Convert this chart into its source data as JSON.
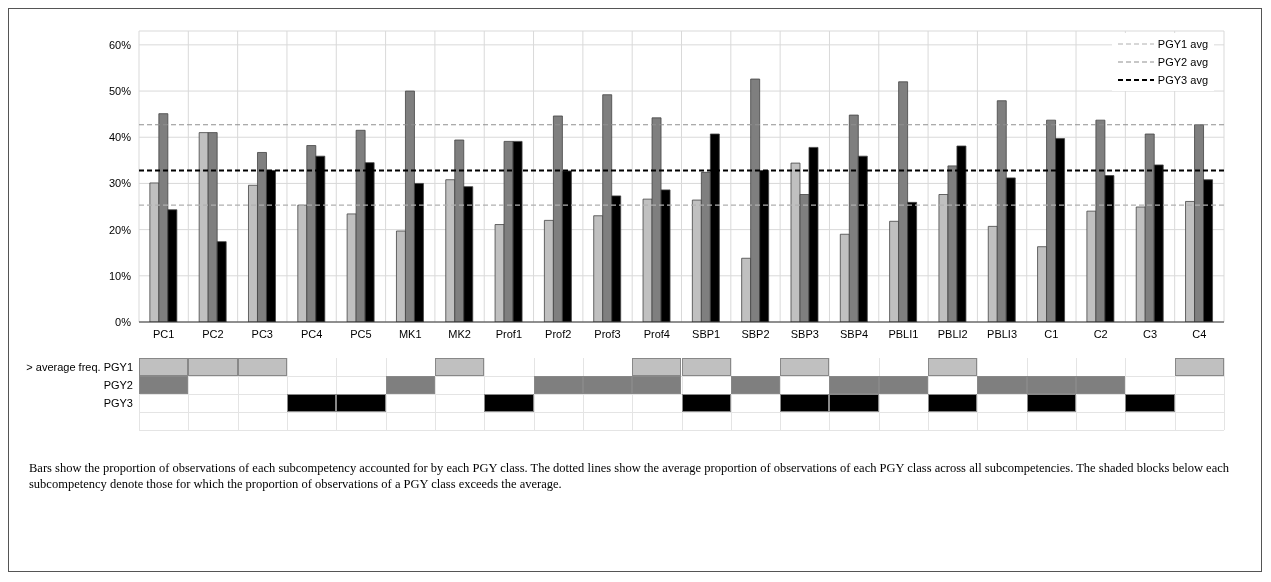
{
  "chart_data": {
    "type": "bar",
    "categories": [
      "PC1",
      "PC2",
      "PC3",
      "PC4",
      "PC5",
      "MK1",
      "MK2",
      "Prof1",
      "Prof2",
      "Prof3",
      "Prof4",
      "SBP1",
      "SBP2",
      "SBP3",
      "SBP4",
      "PBLI1",
      "PBLI2",
      "PBLI3",
      "C1",
      "C2",
      "C3",
      "C4"
    ],
    "series": [
      {
        "color": "#c0c0c0",
        "values": [
          30.1,
          41.0,
          29.6,
          25.3,
          23.4,
          19.7,
          30.8,
          21.1,
          22.0,
          23.0,
          26.6,
          26.4,
          13.8,
          34.4,
          19.0,
          21.8,
          27.6,
          20.7,
          16.3,
          24.0,
          24.9,
          26.1
        ]
      },
      {
        "color": "#7f7f7f",
        "values": [
          45.1,
          41.0,
          36.7,
          38.2,
          41.5,
          50.0,
          39.4,
          39.1,
          44.6,
          49.2,
          44.2,
          32.4,
          52.6,
          27.6,
          44.8,
          52.0,
          33.8,
          47.9,
          43.7,
          43.7,
          40.7,
          42.7
        ]
      },
      {
        "color": "#000000",
        "values": [
          24.3,
          17.4,
          32.8,
          35.9,
          34.5,
          30.0,
          29.3,
          39.1,
          32.7,
          27.3,
          28.6,
          40.7,
          32.8,
          37.8,
          35.9,
          25.9,
          38.1,
          31.2,
          39.7,
          31.7,
          34.0,
          30.8
        ]
      }
    ],
    "ylim": [
      0,
      63
    ],
    "yticks": [
      {
        "value": 0,
        "label": "0%"
      },
      {
        "value": 10,
        "label": "10%"
      },
      {
        "value": 20,
        "label": "20%"
      },
      {
        "value": 30,
        "label": "30%"
      },
      {
        "value": 40,
        "label": "40%"
      },
      {
        "value": 50,
        "label": "50%"
      },
      {
        "value": 60,
        "label": "60%"
      }
    ],
    "grid": true,
    "legend": "top right",
    "ref_lines": [
      {
        "axis": "y",
        "value": 25.3,
        "label": "PGY1 avg",
        "color": "#b0b0b0",
        "line_style": "dashed"
      },
      {
        "axis": "y",
        "value": 42.7,
        "label": "PGY2 avg",
        "color": "#909090",
        "line_style": "dashed"
      },
      {
        "axis": "y",
        "value": 32.8,
        "label": "PGY3 avg",
        "color": "#000000",
        "line_style": "dashed"
      }
    ],
    "annotations": [
      "> average freq. PGY1",
      "PGY2",
      "PGY3",
      "Bars show the proportion of observations of each subcompetency accounted for by each PGY class. The dotted lines show the average proportion of observations of each PGY class across all subcompetencies. The shaded blocks below each subcompetency denote those for which the proportion of observations of a PGY class exceeds the average."
    ]
  }
}
